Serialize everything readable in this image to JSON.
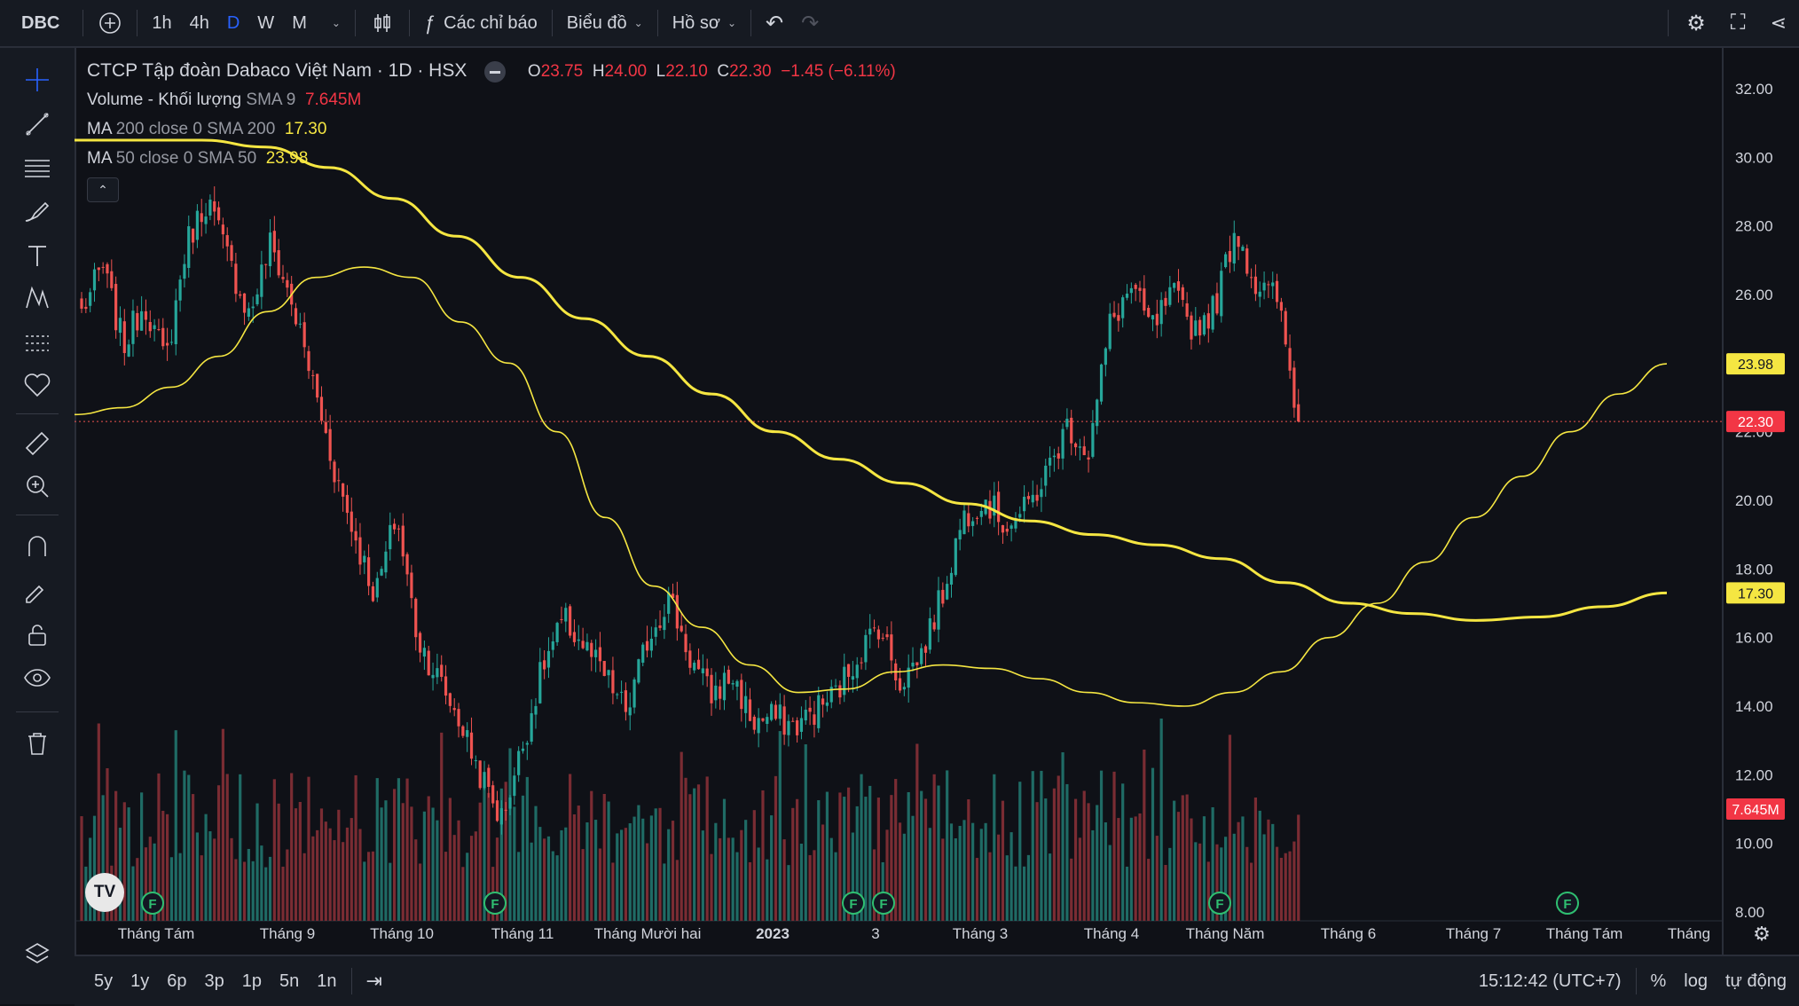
{
  "toolbar": {
    "symbol": "DBC",
    "intervals": [
      "1h",
      "4h",
      "D",
      "W",
      "M"
    ],
    "active_interval": "D",
    "indicators_label": "Các chỉ báo",
    "chart_type_label": "Biểu đồ",
    "profile_label": "Hồ sơ",
    "icons": [
      "add-symbol-icon",
      "chevron-down-icon",
      "candles-icon",
      "fx-icon",
      "undo-icon",
      "redo-icon",
      "gear-icon",
      "fullscreen-icon",
      "share-icon"
    ]
  },
  "legend": {
    "title": "CTCP Tập đoàn Dabaco Việt Nam · 1D · HSX",
    "o_label": "O",
    "o": "23.75",
    "h_label": "H",
    "h": "24.00",
    "l_label": "L",
    "l": "22.10",
    "c_label": "C",
    "c": "22.30",
    "change": "−1.45 (−6.11%)",
    "volume_name": "Volume - Khối lượng",
    "volume_params": "SMA 9",
    "volume_value": "7.645M",
    "ma200_name": "MA",
    "ma200_params": "200 close 0 SMA 200",
    "ma200_value": "17.30",
    "ma50_name": "MA",
    "ma50_params": "50 close 0 SMA 50",
    "ma50_value": "23.98",
    "collapse": "⌃"
  },
  "left_tools": [
    "crosshair-icon",
    "trend-line-icon",
    "fib-icon",
    "brush-icon",
    "text-icon",
    "pattern-icon",
    "prediction-icon",
    "heart-icon",
    "ruler-icon",
    "zoom-icon",
    "magnet-icon",
    "lock-draw-icon",
    "lock-icon",
    "eye-icon",
    "trash-icon",
    "layers-icon"
  ],
  "bottom": {
    "ranges": [
      "5y",
      "1y",
      "6p",
      "3p",
      "1p",
      "5n",
      "1n"
    ],
    "time": "15:12:42 (UTC+7)",
    "percent": "%",
    "log": "log",
    "auto": "tự động"
  },
  "colors": {
    "up": "#26a69a",
    "down": "#ef5350",
    "ma": "#f5e642",
    "bg": "#0f1117"
  },
  "chart_data": {
    "type": "candlestick",
    "x_ticks": [
      "Tháng Tám",
      "Tháng 9",
      "Tháng 10",
      "Tháng 11",
      "Tháng Mười hai",
      "2023",
      "3",
      "Tháng 3",
      "Tháng 4",
      "Tháng Năm",
      "Tháng 6",
      "Tháng 7",
      "Tháng Tám",
      "Tháng"
    ],
    "y_ticks": [
      "32.00",
      "30.00",
      "28.00",
      "26.00",
      "24.00",
      "22.00",
      "20.00",
      "18.00",
      "16.00",
      "14.00",
      "12.00",
      "10.00",
      "8.00"
    ],
    "ylim": [
      8,
      32
    ],
    "last_price": "22.30",
    "ma50_label": "23.98",
    "ma200_label": "17.30",
    "volume_label": "7.645M",
    "events": [
      "F",
      "F",
      "F",
      "F",
      "F",
      "F"
    ],
    "price_keyframes": [
      25.5,
      26.8,
      24.5,
      25.8,
      24.0,
      27.5,
      28.8,
      27.0,
      25.4,
      27.5,
      25.8,
      23.5,
      21.0,
      19.0,
      17.2,
      19.6,
      16.0,
      14.8,
      13.6,
      12.0,
      10.7,
      12.8,
      15.2,
      16.5,
      15.7,
      14.8,
      13.8,
      16.0,
      17.2,
      15.4,
      14.3,
      14.9,
      13.5,
      13.7,
      13.4,
      13.9,
      14.4,
      15.5,
      16.4,
      14.7,
      15.5,
      17.2,
      19.5,
      20.1,
      19.3,
      19.7,
      20.8,
      22.2,
      21.4,
      25.1,
      26.2,
      25.0,
      26.0,
      25.0,
      25.6,
      28.0,
      26.2,
      25.9,
      22.3
    ],
    "ma50": [
      22.5,
      22.7,
      23.3,
      24.2,
      25.5,
      26.5,
      26.8,
      26.5,
      25.2,
      24.0,
      22.0,
      19.5,
      17.5,
      16.3,
      15.2,
      14.4,
      14.5,
      15.0,
      15.2,
      15.1,
      14.8,
      14.4,
      14.1,
      14.0,
      14.4,
      15.0,
      16.0,
      17.0,
      18.2,
      19.5,
      20.7,
      22.0,
      23.1,
      23.98
    ],
    "ma200": [
      30.5,
      30.5,
      30.5,
      30.3,
      29.7,
      28.8,
      27.7,
      26.5,
      25.3,
      24.2,
      23.1,
      22.0,
      21.2,
      20.5,
      19.9,
      19.4,
      19.0,
      18.7,
      18.3,
      17.6,
      17.0,
      16.7,
      16.5,
      16.6,
      16.9,
      17.3
    ]
  }
}
